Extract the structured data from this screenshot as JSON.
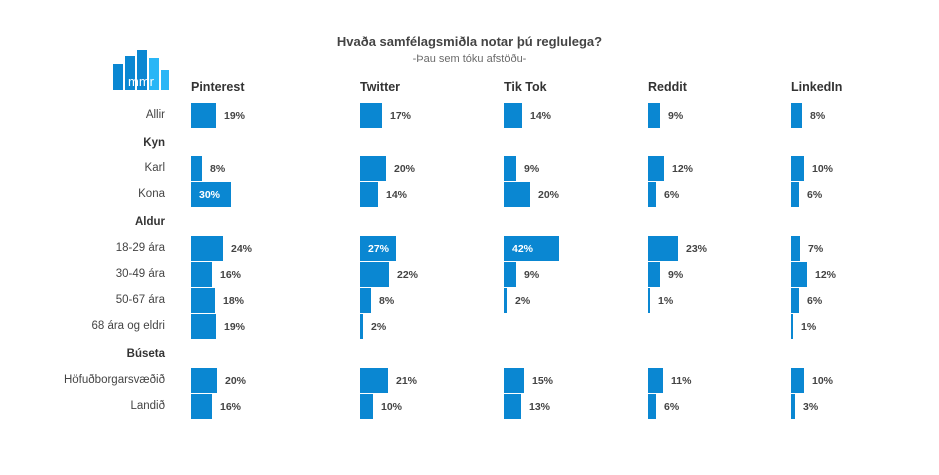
{
  "title": "Hvaða samfélagsmiðla notar þú reglulega?",
  "subtitle": "-Þau sem tóku afstöðu-",
  "logo": {
    "text": "mmr",
    "color": "#0a87d2",
    "accent": "#29b6f6"
  },
  "colors": {
    "bar": "#0a87d2",
    "text": "#444444",
    "inside_text": "#ffffff"
  },
  "chart_data": {
    "type": "bar",
    "orientation": "horizontal-small-multiples",
    "columns": [
      "Pinterest",
      "Twitter",
      "Tik Tok",
      "Reddit",
      "LinkedIn"
    ],
    "rows": [
      {
        "label": "Allir",
        "group": false,
        "values": [
          19,
          17,
          14,
          9,
          8
        ]
      },
      {
        "label": "Kyn",
        "group": true,
        "values": null
      },
      {
        "label": "Karl",
        "group": false,
        "values": [
          8,
          20,
          9,
          12,
          10
        ]
      },
      {
        "label": "Kona",
        "group": false,
        "values": [
          30,
          14,
          20,
          6,
          6
        ]
      },
      {
        "label": "Aldur",
        "group": true,
        "values": null
      },
      {
        "label": "18-29 ára",
        "group": false,
        "values": [
          24,
          27,
          42,
          23,
          7
        ]
      },
      {
        "label": "30-49 ára",
        "group": false,
        "values": [
          16,
          22,
          9,
          9,
          12
        ]
      },
      {
        "label": "50-67 ára",
        "group": false,
        "values": [
          18,
          8,
          2,
          1,
          6
        ]
      },
      {
        "label": "68 ára og eldri",
        "group": false,
        "values": [
          19,
          2,
          null,
          null,
          1
        ]
      },
      {
        "label": "Búseta",
        "group": true,
        "values": null
      },
      {
        "label": "Höfuðborgarsvæðið",
        "group": false,
        "values": [
          20,
          21,
          15,
          11,
          10
        ]
      },
      {
        "label": "Landið",
        "group": false,
        "values": [
          16,
          10,
          13,
          6,
          3
        ]
      }
    ],
    "unit": "%",
    "label_inside_values": [
      [
        3,
        0
      ],
      [
        5,
        1
      ],
      [
        5,
        2
      ]
    ]
  }
}
